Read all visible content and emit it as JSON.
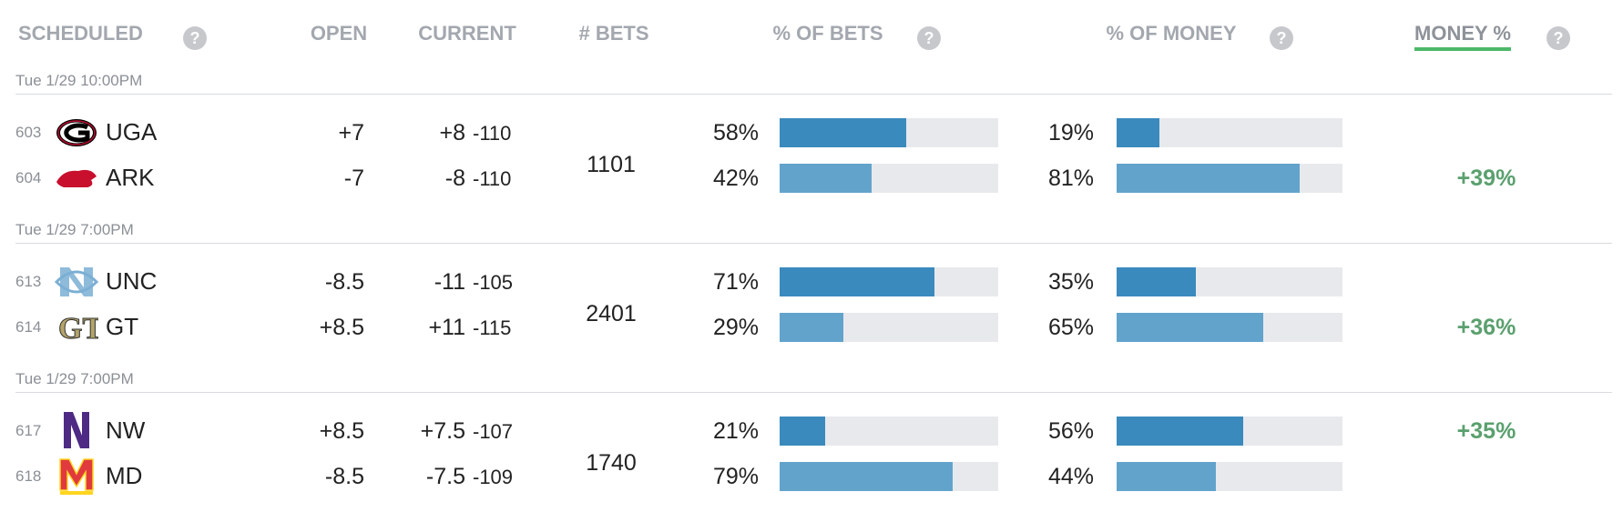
{
  "header": {
    "scheduled": "SCHEDULED",
    "open": "OPEN",
    "current": "CURRENT",
    "bets": "# BETS",
    "pct_bets": "% OF BETS",
    "pct_money": "% OF MONEY",
    "money_pct": "MONEY %",
    "help": "?"
  },
  "games": [
    {
      "date": "Tue 1/29 10:00PM",
      "bets": "1101",
      "teams": [
        {
          "num": "603",
          "name": "UGA",
          "open": "+7",
          "line": "+8",
          "odds": "-110",
          "bets_pct": 58,
          "bets_label": "58%",
          "money_pct": 19,
          "money_label": "19%"
        },
        {
          "num": "604",
          "name": "ARK",
          "open": "-7",
          "line": "-8",
          "odds": "-110",
          "bets_pct": 42,
          "bets_label": "42%",
          "money_pct": 81,
          "money_label": "81%",
          "edge": "+39%"
        }
      ]
    },
    {
      "date": "Tue 1/29 7:00PM",
      "bets": "2401",
      "teams": [
        {
          "num": "613",
          "name": "UNC",
          "open": "-8.5",
          "line": "-11",
          "odds": "-105",
          "bets_pct": 71,
          "bets_label": "71%",
          "money_pct": 35,
          "money_label": "35%"
        },
        {
          "num": "614",
          "name": "GT",
          "open": "+8.5",
          "line": "+11",
          "odds": "-115",
          "bets_pct": 29,
          "bets_label": "29%",
          "money_pct": 65,
          "money_label": "65%",
          "edge": "+36%"
        }
      ]
    },
    {
      "date": "Tue 1/29 7:00PM",
      "bets": "1740",
      "teams": [
        {
          "num": "617",
          "name": "NW",
          "open": "+8.5",
          "line": "+7.5",
          "odds": "-107",
          "bets_pct": 21,
          "bets_label": "21%",
          "money_pct": 56,
          "money_label": "56%",
          "edge": "+35%"
        },
        {
          "num": "618",
          "name": "MD",
          "open": "-8.5",
          "line": "-7.5",
          "odds": "-109",
          "bets_pct": 79,
          "bets_label": "79%",
          "money_pct": 44,
          "money_label": "44%"
        }
      ]
    }
  ]
}
